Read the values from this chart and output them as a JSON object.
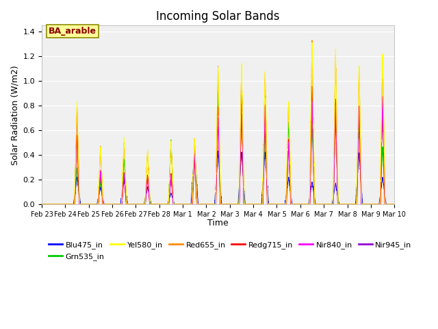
{
  "title": "Incoming Solar Bands",
  "xlabel": "Time",
  "ylabel": "Solar Radiation (W/m2)",
  "annotation_text": "BA_arable",
  "annotation_color": "#8B0000",
  "annotation_bg": "#FFFF99",
  "annotation_edge": "#8B8B00",
  "ylim": [
    0,
    1.45
  ],
  "yticks": [
    0.0,
    0.2,
    0.4,
    0.6,
    0.8,
    1.0,
    1.2,
    1.4
  ],
  "xtick_labels": [
    "Feb 23",
    "Feb 24",
    "Feb 25",
    "Feb 26",
    "Feb 27",
    "Feb 28",
    "Mar 1",
    "Mar 2",
    "Mar 3",
    "Mar 4",
    "Mar 5",
    "Mar 6",
    "Mar 7",
    "Mar 8",
    "Mar 9",
    "Mar 10"
  ],
  "legend_entries": [
    {
      "label": "Blu475_in",
      "color": "#0000FF"
    },
    {
      "label": "Grn535_in",
      "color": "#00CC00"
    },
    {
      "label": "Yel580_in",
      "color": "#FFFF00"
    },
    {
      "label": "Red655_in",
      "color": "#FF8C00"
    },
    {
      "label": "Redg715_in",
      "color": "#FF0000"
    },
    {
      "label": "Nir840_in",
      "color": "#FF00FF"
    },
    {
      "label": "Nir945_in",
      "color": "#9400D3"
    }
  ],
  "bg_color": "#EBEBEB",
  "plot_bg": "#F0F0F0",
  "grid_color": "#FFFFFF",
  "num_days": 16,
  "points_per_day": 288,
  "yel_peaks": [
    0.0,
    0.81,
    0.47,
    0.53,
    0.45,
    0.52,
    0.54,
    1.13,
    1.15,
    1.09,
    0.85,
    1.33,
    1.25,
    1.13,
    1.21,
    0.0
  ],
  "red_peaks": [
    0.0,
    0.8,
    0.46,
    0.51,
    0.44,
    0.51,
    0.53,
    1.1,
    1.13,
    1.08,
    0.84,
    1.32,
    1.24,
    1.12,
    1.2,
    0.0
  ],
  "redg_peaks": [
    0.0,
    0.55,
    0.28,
    0.26,
    0.24,
    0.25,
    0.37,
    0.8,
    0.83,
    0.8,
    0.54,
    0.96,
    0.85,
    0.8,
    0.88,
    0.0
  ],
  "nir840_peaks": [
    0.0,
    0.77,
    0.27,
    0.25,
    0.22,
    0.24,
    0.44,
    0.73,
    0.82,
    0.81,
    0.51,
    0.84,
    0.81,
    0.8,
    0.87,
    0.0
  ],
  "blu_peaks": [
    0.0,
    0.22,
    0.14,
    0.21,
    0.14,
    0.09,
    0.44,
    0.43,
    0.43,
    0.43,
    0.22,
    0.18,
    0.17,
    0.42,
    0.22,
    0.0
  ],
  "grn_peaks": [
    0.0,
    0.3,
    0.19,
    0.37,
    0.21,
    0.52,
    0.45,
    0.93,
    0.93,
    0.58,
    0.67,
    0.67,
    0.68,
    0.67,
    0.47,
    0.0
  ],
  "nir945_peaks": [
    0.0,
    0.76,
    0.27,
    0.24,
    0.22,
    0.23,
    0.43,
    0.72,
    0.81,
    0.8,
    0.5,
    0.82,
    0.8,
    0.79,
    0.86,
    0.0
  ]
}
